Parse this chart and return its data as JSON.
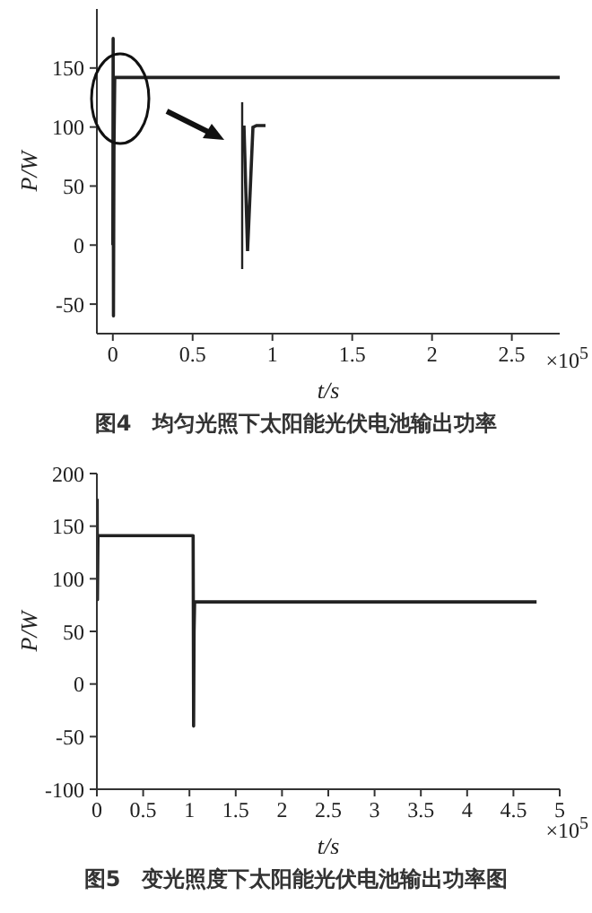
{
  "chart_data": [
    {
      "type": "line",
      "title": "图4　均匀光照下太阳能光伏电池输出功率",
      "xlabel": "t/s",
      "ylabel": "P/W",
      "annotations": [
        "×10$^{5}$"
      ],
      "xlim": [
        -0.1,
        2.8
      ],
      "xticks": [
        0,
        0.5,
        1,
        1.5,
        2,
        2.5
      ],
      "ylim": [
        -75,
        200
      ],
      "yticks": [
        -50,
        0,
        50,
        100,
        150
      ],
      "grid": false,
      "marker": "none",
      "line_style": "solid",
      "series": [
        {
          "color": "#222222",
          "x": [
            0,
            0.002,
            0.004,
            0.007,
            0.012,
            2.8
          ],
          "values": [
            0,
            175,
            -60,
            80,
            142,
            142
          ]
        }
      ]
    },
    {
      "type": "line",
      "title": "图5　变光照度下太阳能光伏电池输出功率图",
      "xlabel": "t/s",
      "ylabel": "P/W",
      "annotations": [
        "×10$^{5}$"
      ],
      "xlim": [
        0,
        5
      ],
      "xticks": [
        0,
        0.5,
        1,
        1.5,
        2,
        2.5,
        3,
        3.5,
        4,
        4.5,
        5
      ],
      "ylim": [
        -100,
        200
      ],
      "yticks": [
        -100,
        -50,
        0,
        50,
        100,
        150,
        200
      ],
      "grid": false,
      "marker": "none",
      "line_style": "solid",
      "series": [
        {
          "color": "#222222",
          "x": [
            0,
            0.003,
            0.006,
            0.012,
            1.04,
            1.045,
            1.05,
            1.056,
            4.75
          ],
          "values": [
            80,
            175,
            80,
            141,
            141,
            -40,
            50,
            78,
            78
          ]
        }
      ]
    }
  ]
}
